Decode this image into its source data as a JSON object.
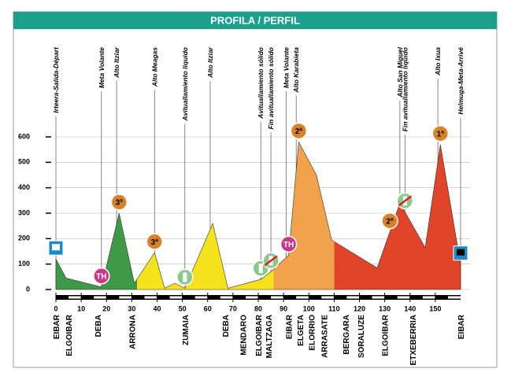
{
  "chart_data": {
    "type": "area",
    "title": "PROFILA / PERFIL",
    "x": [
      0,
      4,
      18,
      25,
      31,
      39,
      43,
      47,
      51,
      62,
      68,
      81,
      85,
      92,
      96,
      103,
      109,
      127,
      136,
      146,
      152,
      160
    ],
    "values": [
      120,
      45,
      10,
      300,
      25,
      145,
      5,
      25,
      5,
      260,
      5,
      40,
      70,
      135,
      580,
      450,
      195,
      85,
      340,
      165,
      570,
      100
    ],
    "fill_zones": [
      {
        "until": 32,
        "color": "#3f9a47"
      },
      {
        "until": 86,
        "color": "#f3e21c"
      },
      {
        "until": 110,
        "color": "#f2a24a"
      },
      {
        "until": 160,
        "color": "#e0452a"
      }
    ],
    "xlim": [
      0,
      160
    ],
    "xticks": [
      0,
      10,
      20,
      30,
      40,
      50,
      60,
      70,
      80,
      90,
      100,
      110,
      120,
      130,
      140,
      150
    ],
    "ylim": [
      0,
      600
    ],
    "yticks": [
      0,
      100,
      200,
      300,
      400,
      500,
      600
    ],
    "grid": true,
    "annotations": [
      {
        "x": 0,
        "text": "Irteera-Salida-Départ"
      },
      {
        "x": 18,
        "text": "Meta Volante"
      },
      {
        "x": 24,
        "text": "Alto Itziar"
      },
      {
        "x": 39,
        "text": "Alto Meagas"
      },
      {
        "x": 51,
        "text": "Avituallamiento liquido"
      },
      {
        "x": 61,
        "text": "Alto Itziar"
      },
      {
        "x": 81,
        "text": "Avituallamiento sólido"
      },
      {
        "x": 85,
        "text": "Fin avituallamiento sólido"
      },
      {
        "x": 91,
        "text": "Meta Volante"
      },
      {
        "x": 95,
        "text": "Alto Karabieta"
      },
      {
        "x": 136,
        "text": "Alto San Miguel"
      },
      {
        "x": 138,
        "text": "Fin avituallamiento liquido"
      },
      {
        "x": 151,
        "text": "Alto Ixua"
      },
      {
        "x": 160,
        "text": "Helmuga-Meta-Arrivé"
      }
    ],
    "towns": [
      {
        "x": 0,
        "text": "EIBAR"
      },
      {
        "x": 5,
        "text": "ELGOIBAR"
      },
      {
        "x": 16.5,
        "text": "DEBA"
      },
      {
        "x": 30,
        "text": "ARRONA"
      },
      {
        "x": 51,
        "text": "ZUMAIA"
      },
      {
        "x": 67,
        "text": "DEBA"
      },
      {
        "x": 74,
        "text": "MENDARO"
      },
      {
        "x": 80,
        "text": "ELGOIBAR"
      },
      {
        "x": 84,
        "text": "MALTZAGA"
      },
      {
        "x": 92,
        "text": "EIBAR"
      },
      {
        "x": 96.5,
        "text": "ELGETA"
      },
      {
        "x": 101,
        "text": "ELORRIO"
      },
      {
        "x": 106,
        "text": "ARRASATE"
      },
      {
        "x": 114.5,
        "text": "BERGARA"
      },
      {
        "x": 120.5,
        "text": "SORALUZE"
      },
      {
        "x": 130,
        "text": "ELGOIBAR"
      },
      {
        "x": 141,
        "text": "ETXEBERRIA"
      },
      {
        "x": 160,
        "text": "EIBAR"
      }
    ],
    "markers": [
      {
        "x": 25,
        "kind": "climb",
        "label": "3ª"
      },
      {
        "x": 18,
        "kind": "sprint",
        "label": "TH"
      },
      {
        "x": 39,
        "kind": "climb",
        "label": "3ª"
      },
      {
        "x": 51,
        "kind": "feed"
      },
      {
        "x": 81,
        "kind": "feed"
      },
      {
        "x": 85,
        "kind": "feed-end"
      },
      {
        "x": 92,
        "kind": "sprint",
        "label": "TH"
      },
      {
        "x": 96,
        "kind": "climb",
        "label": "2ª"
      },
      {
        "x": 132,
        "kind": "climb",
        "label": "2ª"
      },
      {
        "x": 138,
        "kind": "feed-end"
      },
      {
        "x": 152,
        "kind": "climb",
        "label": "1ª"
      },
      {
        "x": 0,
        "kind": "start"
      },
      {
        "x": 160,
        "kind": "finish"
      }
    ]
  }
}
